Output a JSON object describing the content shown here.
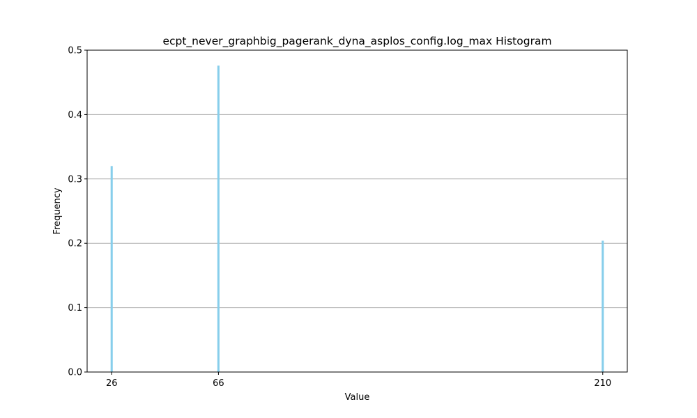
{
  "chart_data": {
    "type": "bar",
    "title": "ecpt_never_graphbig_pagerank_dyna_asplos_config.log_max Histogram",
    "xlabel": "Value",
    "ylabel": "Frequency",
    "xlim": [
      16.8,
      219.2
    ],
    "ylim": [
      0,
      0.5
    ],
    "yticks": [
      0.0,
      0.1,
      0.2,
      0.3,
      0.4,
      0.5
    ],
    "ytick_labels": [
      "0.0",
      "0.1",
      "0.2",
      "0.3",
      "0.4",
      "0.5"
    ],
    "xticks": [
      26,
      66,
      210
    ],
    "xtick_labels": [
      "26",
      "66",
      "210"
    ],
    "bin_width": 0.8,
    "bars": [
      {
        "x": 26,
        "value": 0.32
      },
      {
        "x": 66,
        "value": 0.476
      },
      {
        "x": 210,
        "value": 0.204
      }
    ],
    "grid": {
      "y": true,
      "x": false
    },
    "colors": {
      "bar": "#87ceeb",
      "grid": "#b0b0b0",
      "axis": "#000000"
    }
  }
}
